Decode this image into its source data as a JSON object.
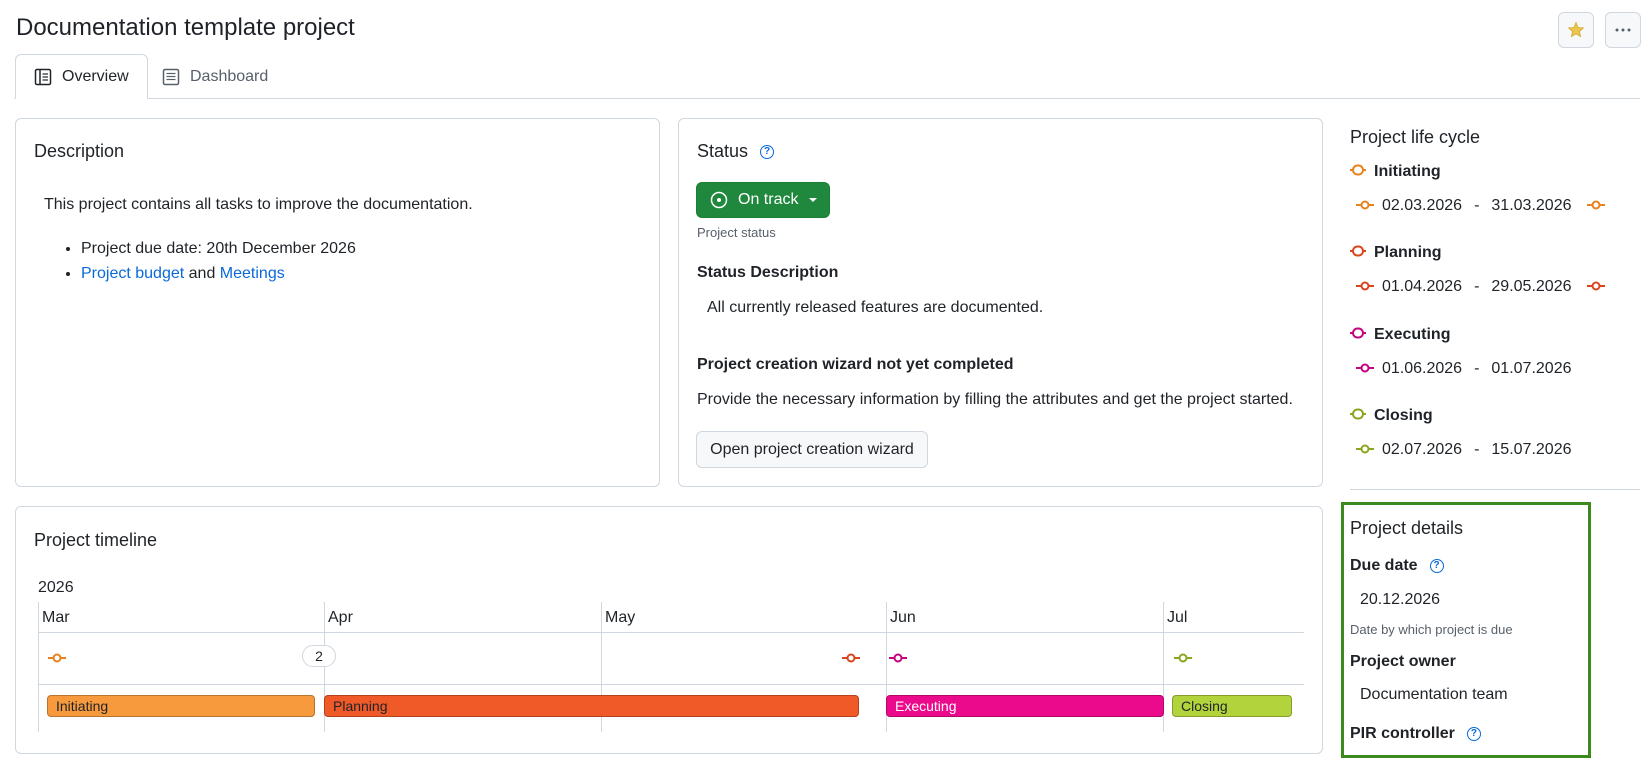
{
  "header": {
    "title": "Documentation template project",
    "favorite_icon": "star-icon",
    "more_icon": "more-icon"
  },
  "tabs": [
    {
      "label": "Overview",
      "icon": "overview-icon",
      "active": true
    },
    {
      "label": "Dashboard",
      "icon": "dashboard-icon",
      "active": false
    }
  ],
  "description": {
    "title": "Description",
    "intro": "This project contains all tasks to improve the documentation.",
    "bullet_1": "Project due date: 20th December 2026",
    "link_budget": "Project budget",
    "and_text": "and",
    "link_meetings": "Meetings"
  },
  "status": {
    "title": "Status",
    "button_label": "On track",
    "button_caption": "Project status",
    "description_title": "Status Description",
    "description_text": "All currently released features are documented.",
    "wizard_title": "Project creation wizard not yet completed",
    "wizard_text": "Provide the necessary information by filling the attributes and get the project started.",
    "wizard_button": "Open project creation wizard"
  },
  "life_cycle": {
    "title": "Project life cycle",
    "separator": "-",
    "phases": [
      {
        "name": "Initiating",
        "start": "02.03.2026",
        "end": "31.03.2026",
        "color": "#e8821e"
      },
      {
        "name": "Planning",
        "start": "01.04.2026",
        "end": "29.05.2026",
        "color": "#d9461e"
      },
      {
        "name": "Executing",
        "start": "01.06.2026",
        "end": "01.07.2026",
        "color": "#c4047f"
      },
      {
        "name": "Closing",
        "start": "02.07.2026",
        "end": "15.07.2026",
        "color": "#8aa61e"
      }
    ]
  },
  "timeline": {
    "title": "Project timeline",
    "year": "2026",
    "months": [
      "Mar",
      "Apr",
      "May",
      "Jun",
      "Jul"
    ],
    "cluster_count": "2",
    "bars": [
      {
        "label": "Initiating",
        "color": "#f79a3e",
        "text_color": "#1f2328"
      },
      {
        "label": "Planning",
        "color": "#ef5a28",
        "text_color": "#1f2328"
      },
      {
        "label": "Executing",
        "color": "#ec0a8c",
        "text_color": "#ffffff"
      },
      {
        "label": "Closing",
        "color": "#b3d33c",
        "text_color": "#1f2328"
      }
    ]
  },
  "details": {
    "title": "Project details",
    "due_date_label": "Due date",
    "due_date_value": "20.12.2026",
    "due_date_caption": "Date by which project is due",
    "owner_label": "Project owner",
    "owner_value": "Documentation team",
    "pir_label": "PIR controller",
    "highlight_color": "#3c8a1e"
  }
}
